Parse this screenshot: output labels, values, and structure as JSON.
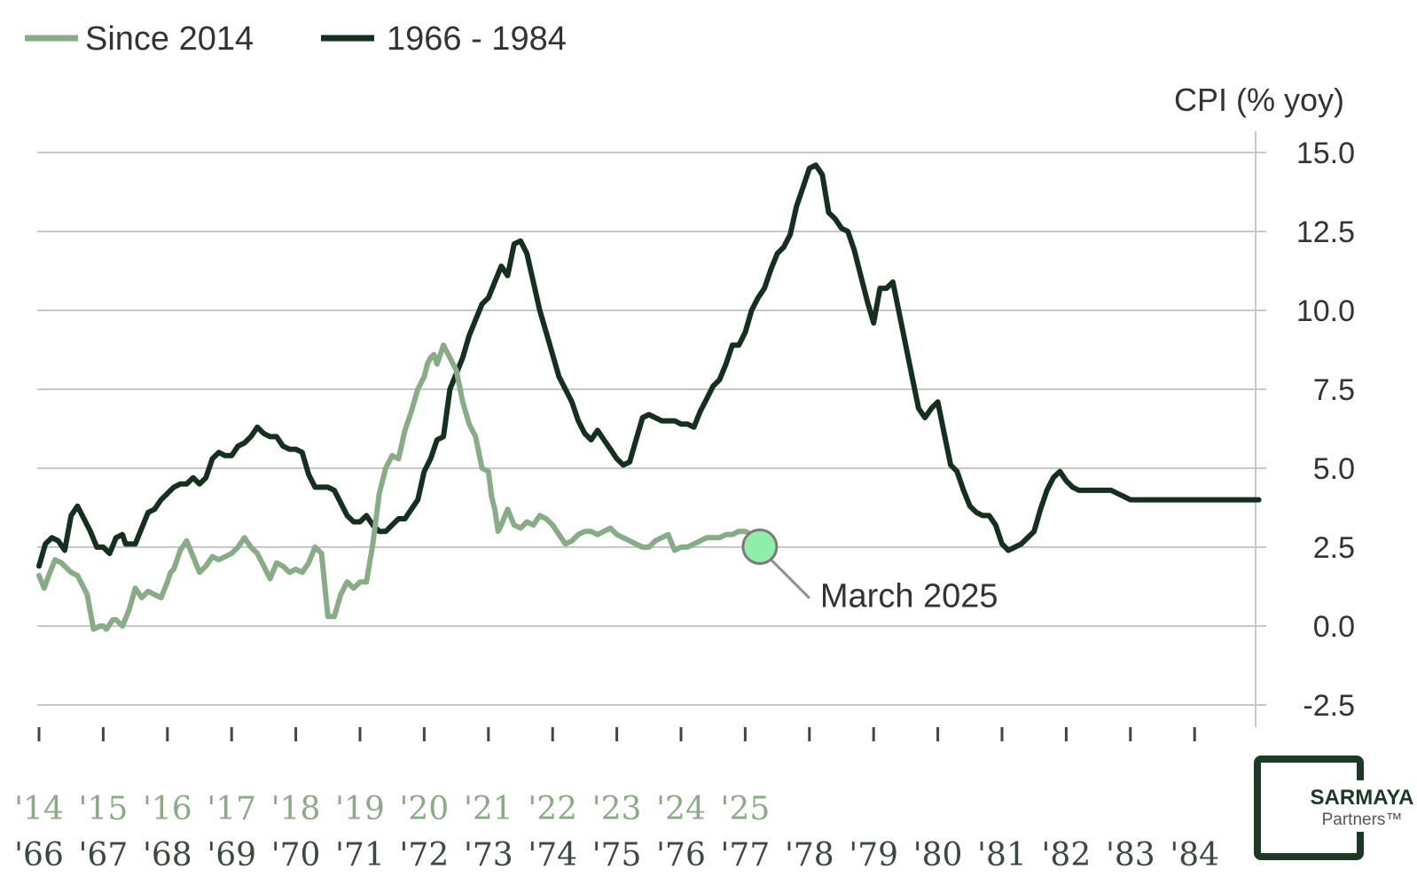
{
  "legend": [
    {
      "label": "Since 2014",
      "color": "#88ad86"
    },
    {
      "label": "1966 - 1984",
      "color": "#15301f"
    }
  ],
  "brand": {
    "name": "SARMAYA",
    "sub": "Partners™",
    "color": "#1b3a26"
  },
  "chart_data": {
    "type": "line",
    "ylabel": "CPI (% yoy)",
    "ylim": [
      -2.5,
      15.0
    ],
    "yticks": [
      "15.0",
      "12.5",
      "10.0",
      "7.5",
      "5.0",
      "2.5",
      "0.0",
      "-2.5"
    ],
    "grid": true,
    "legend_position": "top-left",
    "x_labels_recent": [
      "'14",
      "'15",
      "'16",
      "'17",
      "'18",
      "'19",
      "'20",
      "'21",
      "'22",
      "'23",
      "'24",
      "'25"
    ],
    "x_labels_historical": [
      "'66",
      "'67",
      "'68",
      "'69",
      "'70",
      "'71",
      "'72",
      "'73",
      "'74",
      "'75",
      "'76",
      "'77",
      "'78",
      "'79",
      "'80",
      "'81",
      "'82",
      "'83",
      "'84"
    ],
    "annotation": {
      "text": "March 2025",
      "x": 11.2,
      "y": 2.4
    },
    "series": [
      {
        "name": "Since 2014",
        "color": "#88ad86",
        "x": [
          0.0,
          0.08,
          0.15,
          0.25,
          0.35,
          0.5,
          0.6,
          0.75,
          0.85,
          0.95,
          1.0,
          1.05,
          1.15,
          1.2,
          1.3,
          1.4,
          1.5,
          1.6,
          1.7,
          1.8,
          1.9,
          2.0,
          2.05,
          2.1,
          2.2,
          2.3,
          2.4,
          2.5,
          2.6,
          2.7,
          2.8,
          2.9,
          3.0,
          3.1,
          3.2,
          3.3,
          3.4,
          3.5,
          3.6,
          3.7,
          3.8,
          3.9,
          4.0,
          4.1,
          4.2,
          4.3,
          4.4,
          4.5,
          4.6,
          4.7,
          4.8,
          4.9,
          5.0,
          5.1,
          5.2,
          5.3,
          5.4,
          5.5,
          5.6,
          5.7,
          5.8,
          5.9,
          6.0,
          6.05,
          6.1,
          6.15,
          6.2,
          6.3,
          6.4,
          6.5,
          6.6,
          6.7,
          6.8,
          6.9,
          7.0,
          7.05,
          7.1,
          7.15,
          7.2,
          7.3,
          7.4,
          7.5,
          7.6,
          7.7,
          7.8,
          7.9,
          8.0,
          8.1,
          8.2,
          8.3,
          8.4,
          8.5,
          8.6,
          8.7,
          8.8,
          8.9,
          9.0,
          9.1,
          9.2,
          9.3,
          9.4,
          9.5,
          9.6,
          9.7,
          9.8,
          9.9,
          10.0,
          10.1,
          10.2,
          10.3,
          10.4,
          10.5,
          10.6,
          10.7,
          10.8,
          10.9,
          11.0,
          11.1,
          11.2
        ],
        "values": [
          1.6,
          1.2,
          1.6,
          2.1,
          2.0,
          1.7,
          1.6,
          1.0,
          -0.1,
          0.0,
          0.0,
          -0.1,
          0.2,
          0.2,
          0.0,
          0.5,
          1.2,
          0.9,
          1.1,
          1.0,
          0.9,
          1.4,
          1.7,
          1.8,
          2.4,
          2.7,
          2.2,
          1.7,
          1.9,
          2.2,
          2.1,
          2.2,
          2.3,
          2.5,
          2.8,
          2.5,
          2.3,
          1.9,
          1.5,
          2.0,
          1.9,
          1.7,
          1.8,
          1.7,
          2.0,
          2.5,
          2.3,
          0.3,
          0.3,
          1.0,
          1.4,
          1.2,
          1.4,
          1.4,
          2.6,
          4.2,
          5.0,
          5.4,
          5.3,
          6.2,
          6.8,
          7.5,
          7.9,
          8.3,
          8.5,
          8.6,
          8.3,
          8.9,
          8.5,
          8.1,
          7.1,
          6.4,
          6.0,
          5.0,
          4.9,
          4.1,
          3.7,
          3.0,
          3.2,
          3.7,
          3.2,
          3.1,
          3.3,
          3.2,
          3.5,
          3.4,
          3.2,
          2.9,
          2.6,
          2.7,
          2.9,
          3.0,
          3.0,
          2.9,
          3.0,
          3.1,
          2.9,
          2.8,
          2.7,
          2.6,
          2.5,
          2.5,
          2.7,
          2.8,
          2.9,
          2.4,
          2.5,
          2.5,
          2.6,
          2.7,
          2.8,
          2.8,
          2.8,
          2.9,
          2.9,
          3.0,
          3.0,
          2.9,
          2.4
        ]
      },
      {
        "name": "1966 - 1984",
        "color": "#15301f",
        "x": [
          0.0,
          0.1,
          0.2,
          0.3,
          0.4,
          0.5,
          0.6,
          0.7,
          0.8,
          0.9,
          1.0,
          1.1,
          1.2,
          1.3,
          1.35,
          1.4,
          1.5,
          1.6,
          1.7,
          1.8,
          1.9,
          2.0,
          2.1,
          2.2,
          2.3,
          2.4,
          2.5,
          2.6,
          2.7,
          2.8,
          2.9,
          3.0,
          3.1,
          3.2,
          3.3,
          3.4,
          3.5,
          3.6,
          3.7,
          3.8,
          3.9,
          4.0,
          4.1,
          4.2,
          4.3,
          4.4,
          4.5,
          4.6,
          4.7,
          4.8,
          4.9,
          5.0,
          5.1,
          5.2,
          5.3,
          5.4,
          5.5,
          5.6,
          5.7,
          5.8,
          5.9,
          6.0,
          6.1,
          6.2,
          6.3,
          6.4,
          6.5,
          6.6,
          6.7,
          6.8,
          6.9,
          7.0,
          7.1,
          7.2,
          7.3,
          7.4,
          7.5,
          7.6,
          7.7,
          7.8,
          7.9,
          8.0,
          8.1,
          8.2,
          8.3,
          8.4,
          8.5,
          8.6,
          8.7,
          8.8,
          8.9,
          9.0,
          9.1,
          9.2,
          9.3,
          9.4,
          9.5,
          9.6,
          9.7,
          9.8,
          9.9,
          10.0,
          10.1,
          10.2,
          10.3,
          10.4,
          10.5,
          10.6,
          10.7,
          10.8,
          10.9,
          11.0,
          11.1,
          11.2,
          11.3,
          11.4,
          11.5,
          11.6,
          11.7,
          11.8,
          11.9,
          12.0,
          12.1,
          12.2,
          12.3,
          12.4,
          12.5,
          12.6,
          12.7,
          12.8,
          12.9,
          13.0,
          13.1,
          13.2,
          13.3,
          13.4,
          13.5,
          13.6,
          13.7,
          13.8,
          13.9,
          14.0,
          14.1,
          14.2,
          14.3,
          14.4,
          14.5,
          14.6,
          14.7,
          14.8,
          14.9,
          15.0,
          15.1,
          15.2,
          15.3,
          15.4,
          15.5,
          15.6,
          15.7,
          15.8,
          15.9,
          16.0,
          16.1,
          16.2,
          16.3,
          16.4,
          16.5,
          16.6,
          16.7,
          16.8,
          16.9,
          17.0,
          17.1,
          17.2,
          17.3,
          17.4,
          17.5,
          17.6,
          17.7,
          17.8,
          17.9,
          18.0,
          18.1,
          18.2,
          18.3,
          18.4,
          18.5,
          18.6,
          18.7,
          18.8,
          18.9,
          19.0
        ],
        "values": [
          1.9,
          2.6,
          2.8,
          2.7,
          2.4,
          3.5,
          3.8,
          3.4,
          3.0,
          2.5,
          2.5,
          2.3,
          2.8,
          2.9,
          2.6,
          2.6,
          2.6,
          3.1,
          3.6,
          3.7,
          4.0,
          4.2,
          4.4,
          4.5,
          4.5,
          4.7,
          4.5,
          4.7,
          5.3,
          5.5,
          5.4,
          5.4,
          5.7,
          5.8,
          6.0,
          6.3,
          6.1,
          6.0,
          6.0,
          5.7,
          5.6,
          5.6,
          5.5,
          4.8,
          4.4,
          4.4,
          4.4,
          4.3,
          3.9,
          3.5,
          3.3,
          3.3,
          3.5,
          3.2,
          3.0,
          3.0,
          3.2,
          3.4,
          3.4,
          3.7,
          4.0,
          4.9,
          5.3,
          5.9,
          6.0,
          7.5,
          8.0,
          8.5,
          9.2,
          9.7,
          10.2,
          10.4,
          10.9,
          11.4,
          11.1,
          12.1,
          12.2,
          11.8,
          10.9,
          10.0,
          9.3,
          8.6,
          7.9,
          7.5,
          7.1,
          6.5,
          6.1,
          5.9,
          6.2,
          5.9,
          5.6,
          5.3,
          5.1,
          5.2,
          5.9,
          6.6,
          6.7,
          6.6,
          6.5,
          6.5,
          6.5,
          6.4,
          6.4,
          6.3,
          6.8,
          7.2,
          7.6,
          7.8,
          8.3,
          8.9,
          8.9,
          9.3,
          10.0,
          10.4,
          10.7,
          11.3,
          11.8,
          12.0,
          12.4,
          13.3,
          13.9,
          14.5,
          14.6,
          14.3,
          13.1,
          12.9,
          12.6,
          12.5,
          11.9,
          11.1,
          10.3,
          9.6,
          10.7,
          10.7,
          10.9,
          9.9,
          8.9,
          7.9,
          6.9,
          6.6,
          6.9,
          7.1,
          6.1,
          5.1,
          4.9,
          4.3,
          3.8,
          3.6,
          3.5,
          3.5,
          3.2,
          2.6,
          2.4,
          2.5,
          2.6,
          2.8,
          3.0,
          3.7,
          4.3,
          4.7,
          4.9,
          4.6,
          4.4,
          4.3,
          4.3,
          4.3,
          4.3,
          4.3,
          4.3,
          4.2,
          4.1,
          4.0,
          4.0,
          4.0,
          4.0,
          4.0,
          4.0,
          4.0,
          4.0,
          4.0,
          4.0,
          4.0,
          4.0,
          4.0,
          4.0,
          4.0,
          4.0,
          4.0,
          4.0,
          4.0,
          4.0,
          4.0
        ]
      }
    ]
  }
}
